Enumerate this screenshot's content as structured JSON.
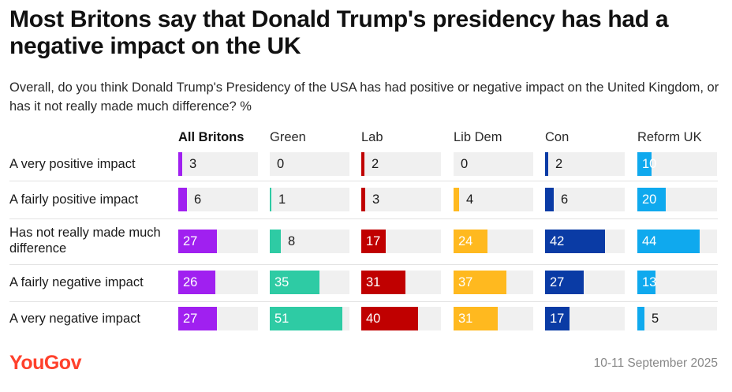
{
  "header": {
    "title": "Most Britons say that Donald Trump's presidency has had a negative impact on the UK",
    "subtitle": "Overall, do you think Donald Trump's Presidency of the USA has had positive or negative impact on the United Kingdom, or has it not really made much difference? %"
  },
  "footer": {
    "logo": "YouGov",
    "date": "10-11 September 2025"
  },
  "chart_data": {
    "type": "bar",
    "unit": "%",
    "categories": [
      "A very positive impact",
      "A fairly positive impact",
      "Has not really made much difference",
      "A fairly negative impact",
      "A very negative impact"
    ],
    "xlim": [
      0,
      56
    ],
    "series": [
      {
        "name": "All Britons",
        "color": "#a020f0",
        "values": [
          3,
          6,
          27,
          26,
          27
        ]
      },
      {
        "name": "Green",
        "color": "#2ecba4",
        "values": [
          0,
          1,
          8,
          35,
          51
        ]
      },
      {
        "name": "Lab",
        "color": "#c00000",
        "values": [
          2,
          3,
          17,
          31,
          40
        ]
      },
      {
        "name": "Lib Dem",
        "color": "#ffb91f",
        "values": [
          0,
          4,
          24,
          37,
          31
        ]
      },
      {
        "name": "Con",
        "color": "#0a3ba5",
        "values": [
          2,
          6,
          42,
          27,
          17
        ]
      },
      {
        "name": "Reform UK",
        "color": "#0fa9ee",
        "values": [
          10,
          20,
          44,
          13,
          5
        ]
      }
    ]
  }
}
